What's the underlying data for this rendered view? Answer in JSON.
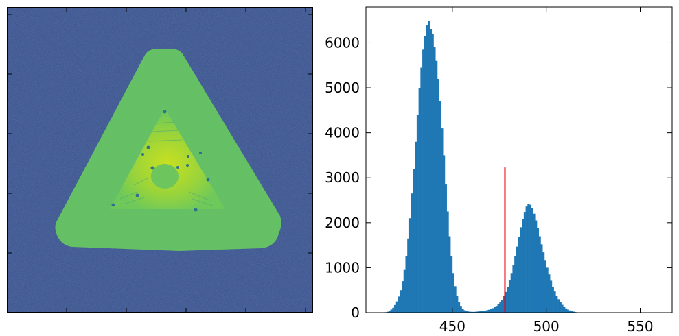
{
  "image_panel": {
    "description_icon": "micrograph-image",
    "colormap": [
      "#440154",
      "#3b528b",
      "#21918c",
      "#5ec962",
      "#fde725"
    ]
  },
  "chart_data": {
    "type": "bar",
    "title": "",
    "xlabel": "",
    "ylabel": "",
    "xlim": [
      404,
      567
    ],
    "ylim": [
      0,
      6800
    ],
    "xticks": [
      450,
      500,
      550
    ],
    "yticks": [
      0,
      1000,
      2000,
      3000,
      4000,
      5000,
      6000
    ],
    "bar_color": "#1f77b4",
    "bin_width": 1,
    "histogram": {
      "x_start": 412,
      "values": [
        0,
        5,
        10,
        20,
        40,
        70,
        110,
        170,
        250,
        360,
        500,
        700,
        950,
        1250,
        1650,
        2100,
        2650,
        3200,
        3800,
        4400,
        5000,
        5450,
        5850,
        6150,
        6400,
        6480,
        6300,
        6200,
        5900,
        5600,
        5200,
        4700,
        4100,
        3500,
        2850,
        2250,
        1700,
        1250,
        880,
        590,
        380,
        240,
        150,
        90,
        55,
        35,
        25,
        20,
        18,
        18,
        20,
        25,
        30,
        35,
        40,
        45,
        55,
        65,
        80,
        100,
        125,
        150,
        185,
        230,
        290,
        370,
        460,
        580,
        720,
        880,
        1060,
        1260,
        1470,
        1690,
        1900,
        2080,
        2240,
        2360,
        2420,
        2400,
        2320,
        2200,
        2050,
        1880,
        1700,
        1520,
        1340,
        1170,
        1000,
        850,
        710,
        580,
        470,
        380,
        300,
        230,
        175,
        130,
        95,
        70,
        50,
        35,
        22,
        12,
        5
      ]
    },
    "threshold": {
      "x": 478,
      "height": 3230,
      "color": "#e8000b"
    }
  }
}
